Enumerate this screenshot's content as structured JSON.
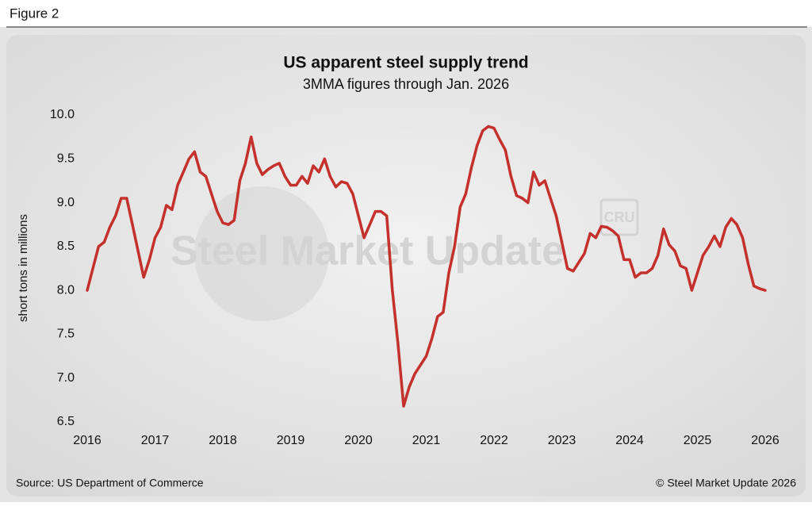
{
  "header": {
    "figure": "Figure 2"
  },
  "chart_data": {
    "type": "line",
    "title": "US apparent steel supply trend",
    "subtitle": "3MMA figures through Jan. 2026",
    "y_label": "short tons in millions",
    "watermark": "Steel Market Update",
    "watermark_logo": "CRU",
    "source": "Source: US Department of Commerce",
    "copyright": "© Steel Market Update 2026",
    "xlim": [
      2016,
      2026
    ],
    "xticks": [
      2016,
      2017,
      2018,
      2019,
      2020,
      2021,
      2022,
      2023,
      2024,
      2025,
      2026
    ],
    "ylim": [
      6.5,
      10
    ],
    "yticks": [
      {
        "value": 10,
        "label": "10.0"
      },
      9.5,
      {
        "value": 9,
        "label": "9.0"
      },
      8.5,
      {
        "value": 8,
        "label": "8.0"
      },
      7.5,
      {
        "value": 7,
        "label": "7.0"
      },
      6.5
    ],
    "grid": false,
    "x": [
      2016,
      2016.083,
      2016.167,
      2016.25,
      2016.333,
      2016.417,
      2016.5,
      2016.583,
      2016.667,
      2016.75,
      2016.833,
      2016.917,
      2017,
      2017.083,
      2017.167,
      2017.25,
      2017.333,
      2017.417,
      2017.5,
      2017.583,
      2017.667,
      2017.75,
      2017.833,
      2017.917,
      2018,
      2018.083,
      2018.167,
      2018.25,
      2018.333,
      2018.417,
      2018.5,
      2018.583,
      2018.667,
      2018.75,
      2018.833,
      2018.917,
      2019,
      2019.083,
      2019.167,
      2019.25,
      2019.333,
      2019.417,
      2019.5,
      2019.583,
      2019.667,
      2019.75,
      2019.833,
      2019.917,
      2020,
      2020.083,
      2020.167,
      2020.25,
      2020.333,
      2020.417,
      2020.5,
      2020.583,
      2020.667,
      2020.75,
      2020.833,
      2020.917,
      2021,
      2021.083,
      2021.167,
      2021.25,
      2021.333,
      2021.417,
      2021.5,
      2021.583,
      2021.667,
      2021.75,
      2021.833,
      2021.917,
      2022,
      2022.083,
      2022.167,
      2022.25,
      2022.333,
      2022.417,
      2022.5,
      2022.583,
      2022.667,
      2022.75,
      2022.833,
      2022.917,
      2023,
      2023.083,
      2023.167,
      2023.25,
      2023.333,
      2023.417,
      2023.5,
      2023.583,
      2023.667,
      2023.75,
      2023.833,
      2023.917,
      2024,
      2024.083,
      2024.167,
      2024.25,
      2024.333,
      2024.417,
      2024.5,
      2024.583,
      2024.667,
      2024.75,
      2024.833,
      2024.917,
      2025,
      2025.083,
      2025.167,
      2025.25,
      2025.333,
      2025.417,
      2025.5,
      2025.583,
      2025.667,
      2025.75,
      2025.833,
      2025.917,
      2026
    ],
    "series": [
      {
        "name": "US apparent steel supply",
        "color": "#c4302b",
        "values": [
          8.0,
          8.25,
          8.5,
          8.55,
          8.72,
          8.85,
          9.05,
          9.05,
          8.75,
          8.45,
          8.15,
          8.35,
          8.6,
          8.72,
          8.97,
          8.92,
          9.2,
          9.35,
          9.5,
          9.58,
          9.35,
          9.3,
          9.1,
          8.9,
          8.77,
          8.75,
          8.8,
          9.25,
          9.45,
          9.75,
          9.45,
          9.32,
          9.38,
          9.42,
          9.45,
          9.3,
          9.2,
          9.2,
          9.3,
          9.22,
          9.42,
          9.35,
          9.5,
          9.3,
          9.18,
          9.24,
          9.22,
          9.1,
          8.85,
          8.6,
          8.75,
          8.9,
          8.9,
          8.85,
          8.0,
          7.4,
          6.68,
          6.9,
          7.05,
          7.15,
          7.25,
          7.45,
          7.7,
          7.75,
          8.2,
          8.5,
          8.95,
          9.1,
          9.4,
          9.65,
          9.82,
          9.87,
          9.85,
          9.72,
          9.6,
          9.3,
          9.08,
          9.05,
          9.0,
          9.35,
          9.2,
          9.25,
          9.05,
          8.85,
          8.55,
          8.25,
          8.22,
          8.32,
          8.42,
          8.65,
          8.6,
          8.73,
          8.72,
          8.68,
          8.62,
          8.35,
          8.35,
          8.15,
          8.2,
          8.2,
          8.25,
          8.4,
          8.7,
          8.52,
          8.45,
          8.28,
          8.25,
          8.0,
          8.2,
          8.4,
          8.5,
          8.62,
          8.5,
          8.72,
          8.82,
          8.75,
          8.6,
          8.3,
          8.05,
          8.02,
          8.0
        ]
      }
    ]
  }
}
